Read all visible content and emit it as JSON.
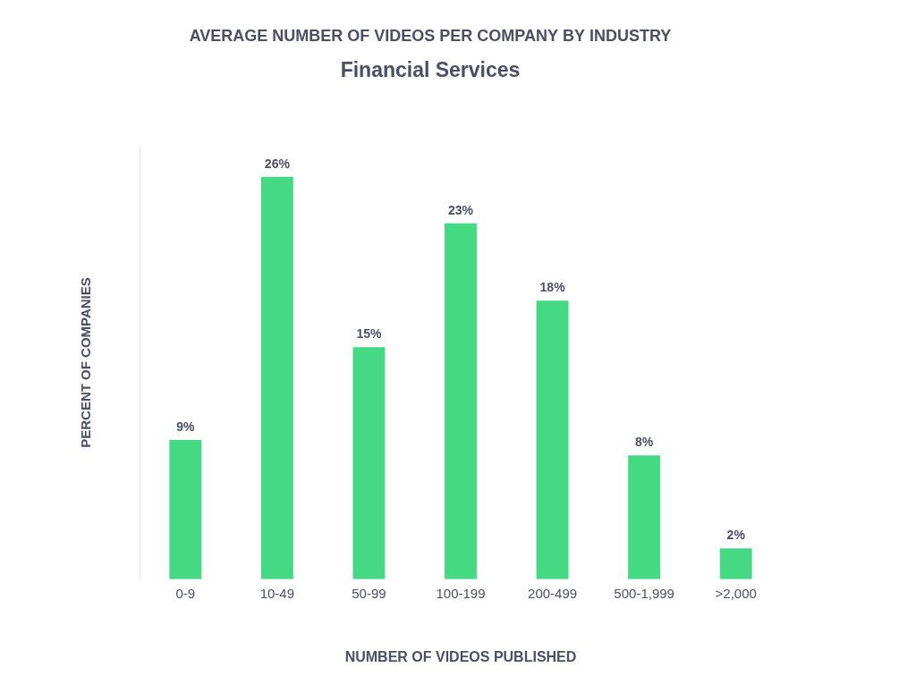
{
  "chart_data": {
    "type": "bar",
    "title": "AVERAGE NUMBER OF VIDEOS PER COMPANY BY INDUSTRY",
    "subtitle": "Financial Services",
    "x_label": "NUMBER OF VIDEOS PUBLISHED",
    "y_label": "PERCENT OF COMPANIES",
    "categories": [
      "0-9",
      "10-49",
      "50-99",
      "100-199",
      "200-499",
      "500-1,999",
      ">2,000"
    ],
    "values": [
      9,
      26,
      15,
      23,
      18,
      8,
      2
    ],
    "value_labels": [
      "9%",
      "26%",
      "15%",
      "23%",
      "18%",
      "8%",
      "2%"
    ],
    "color": "#45d983",
    "ylim": [
      0,
      28
    ],
    "grid": false,
    "data_labels": true,
    "tick_labels": "x"
  }
}
